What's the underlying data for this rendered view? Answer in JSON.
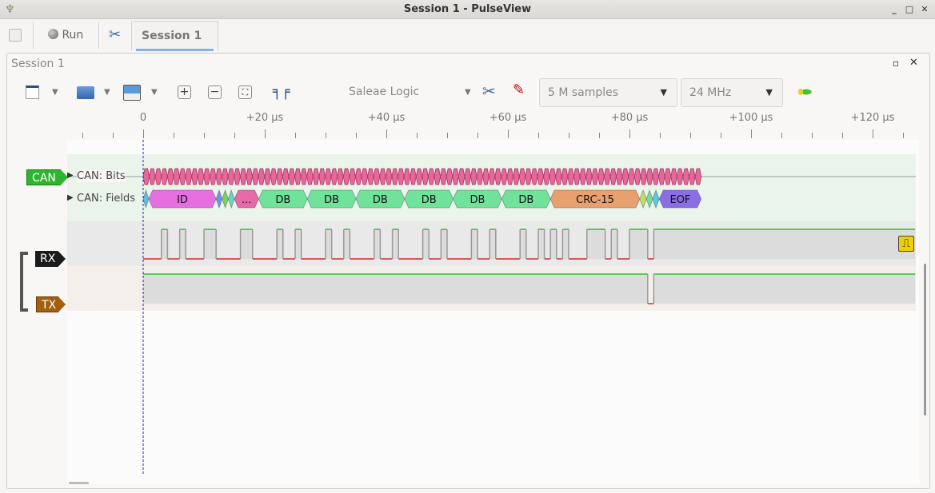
{
  "window": {
    "title": "Session 1 - PulseView",
    "controls": [
      "_",
      "□",
      "✕"
    ]
  },
  "tabs": {
    "run_label": "Run",
    "session_tab": "Session 1",
    "close": "✕"
  },
  "session": {
    "title": "Session 1",
    "float": "▫",
    "close": "✕"
  },
  "toolbar": {
    "device": "Saleae Logic",
    "samples": "5 M samples",
    "samplerate": "24 MHz",
    "dropdown": "▼"
  },
  "ruler": {
    "unit": "µs",
    "labels": [
      {
        "t": 0,
        "text": "0"
      },
      {
        "t": 20,
        "text": "+20 µs"
      },
      {
        "t": 40,
        "text": "+40 µs"
      },
      {
        "t": 60,
        "text": "+60 µs"
      },
      {
        "t": 80,
        "text": "+80 µs"
      },
      {
        "t": 100,
        "text": "+100 µs"
      },
      {
        "t": 120,
        "text": "+120 µs"
      }
    ],
    "minor_step_us": 5
  },
  "decoder": {
    "name": "CAN",
    "color": "#2db52d",
    "rows": [
      {
        "label": "CAN: Bits"
      },
      {
        "label": "CAN: Fields"
      }
    ],
    "bits": {
      "start_us": 0,
      "end_us": 91.8,
      "count": 92,
      "color": "#e9669a"
    },
    "fields": [
      {
        "s": 0,
        "e": 0.9,
        "text": "",
        "color": "#5bc0e5"
      },
      {
        "s": 0.9,
        "e": 12,
        "text": "ID",
        "color": "#e56ee0"
      },
      {
        "s": 12,
        "e": 13,
        "text": "",
        "color": "#6b98e5"
      },
      {
        "s": 13,
        "e": 14,
        "text": "",
        "color": "#7ad35e"
      },
      {
        "s": 14,
        "e": 15,
        "text": "",
        "color": "#64d9c0"
      },
      {
        "s": 15,
        "e": 19,
        "text": "...",
        "color": "#e66aa8"
      },
      {
        "s": 19,
        "e": 27,
        "text": "DB",
        "color": "#70e29a"
      },
      {
        "s": 27,
        "e": 35,
        "text": "DB",
        "color": "#70e29a"
      },
      {
        "s": 35,
        "e": 43,
        "text": "DB",
        "color": "#70e29a"
      },
      {
        "s": 43,
        "e": 51,
        "text": "DB",
        "color": "#70e29a"
      },
      {
        "s": 51,
        "e": 59,
        "text": "DB",
        "color": "#70e29a"
      },
      {
        "s": 59,
        "e": 67,
        "text": "DB",
        "color": "#70e29a"
      },
      {
        "s": 67,
        "e": 81.7,
        "text": "CRC-15",
        "color": "#e8a06e"
      },
      {
        "s": 81.7,
        "e": 82.8,
        "text": "",
        "color": "#b8e06a"
      },
      {
        "s": 82.8,
        "e": 83.8,
        "text": "",
        "color": "#70e29a"
      },
      {
        "s": 83.8,
        "e": 84.9,
        "text": "",
        "color": "#5bc8e0"
      },
      {
        "s": 84.9,
        "e": 91.8,
        "text": "EOF",
        "color": "#8a6ee6"
      }
    ]
  },
  "channels": [
    {
      "name": "RX",
      "color": "#1b1b1b",
      "initial": 0,
      "edges_us": [
        3,
        4,
        6,
        7,
        10,
        12,
        16,
        18,
        22,
        23,
        25,
        26,
        30,
        31,
        33,
        34,
        38,
        39,
        41,
        42,
        46,
        47,
        49,
        50,
        54,
        55,
        57,
        58,
        62,
        63,
        65,
        66,
        67,
        68,
        69,
        70,
        73,
        76,
        77,
        78,
        80,
        83,
        84
      ],
      "trigger": "rising-edge"
    },
    {
      "name": "TX",
      "color": "#a0600e",
      "initial": 1,
      "edges_us": [
        83,
        84
      ]
    }
  ],
  "colors": {
    "high": "#00c000",
    "low": "#d00000",
    "cursor": "#2222cc"
  }
}
